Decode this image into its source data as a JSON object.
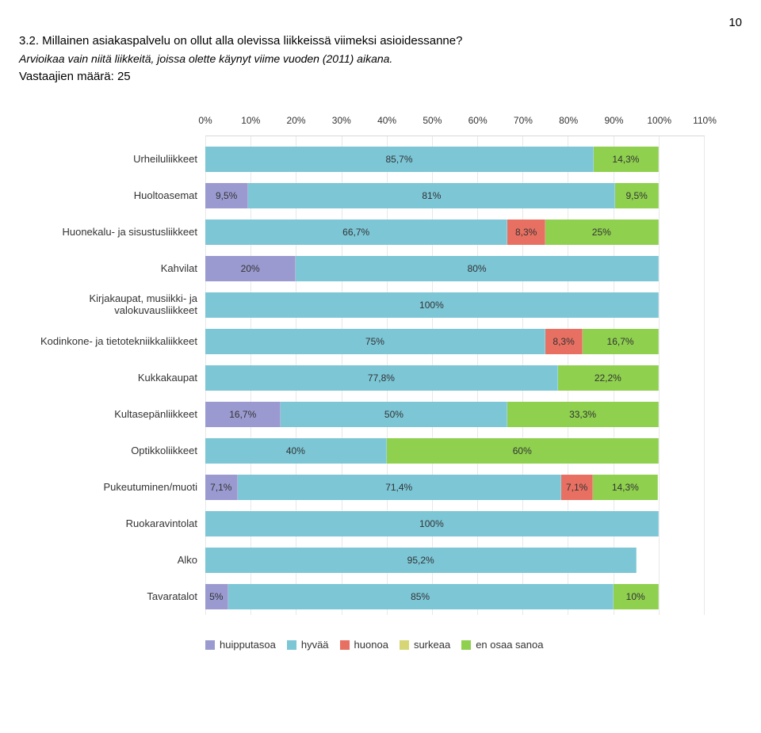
{
  "page_number": "10",
  "title": "3.2. Millainen asiakaspalvelu on ollut alla olevissa liikkeissä viimeksi asioidessanne?",
  "subtitle": "Arvioikaa vain niitä liikkeitä, joissa olette käynyt viime vuoden (2011) aikana.",
  "respondents": "Vastaajien määrä: 25",
  "chart": {
    "type": "stacked-bar-horizontal",
    "xmax": 110,
    "ticks": [
      "0%",
      "10%",
      "20%",
      "30%",
      "40%",
      "50%",
      "60%",
      "70%",
      "80%",
      "90%",
      "100%",
      "110%"
    ],
    "colors": {
      "huipputasoa": "#9a9ad1",
      "hyvaa": "#7cc6d6",
      "huonoa": "#e87062",
      "surkeaa": "#d6d676",
      "en_osaa_sanoa": "#8fd04f"
    },
    "legend": [
      {
        "key": "huipputasoa",
        "label": "huipputasoa"
      },
      {
        "key": "hyvaa",
        "label": "hyvää"
      },
      {
        "key": "huonoa",
        "label": "huonoa"
      },
      {
        "key": "surkeaa",
        "label": "surkeaa"
      },
      {
        "key": "en_osaa_sanoa",
        "label": "en osaa sanoa"
      }
    ],
    "categories": [
      {
        "label": "Urheiluliikkeet",
        "segments": [
          {
            "key": "hyvaa",
            "value": 85.7,
            "text": "85,7%"
          },
          {
            "key": "en_osaa_sanoa",
            "value": 14.3,
            "text": "14,3%"
          }
        ]
      },
      {
        "label": "Huoltoasemat",
        "segments": [
          {
            "key": "huipputasoa",
            "value": 9.5,
            "text": "9,5%"
          },
          {
            "key": "hyvaa",
            "value": 81,
            "text": "81%"
          },
          {
            "key": "en_osaa_sanoa",
            "value": 9.5,
            "text": "9,5%"
          }
        ]
      },
      {
        "label": "Huonekalu- ja sisustusliikkeet",
        "segments": [
          {
            "key": "hyvaa",
            "value": 66.7,
            "text": "66,7%"
          },
          {
            "key": "huonoa",
            "value": 8.3,
            "text": "8,3%"
          },
          {
            "key": "en_osaa_sanoa",
            "value": 25,
            "text": "25%"
          }
        ]
      },
      {
        "label": "Kahvilat",
        "segments": [
          {
            "key": "huipputasoa",
            "value": 20,
            "text": "20%"
          },
          {
            "key": "hyvaa",
            "value": 80,
            "text": "80%"
          }
        ]
      },
      {
        "label": "Kirjakaupat, musiikki- ja valokuvausliikkeet",
        "segments": [
          {
            "key": "hyvaa",
            "value": 100,
            "text": "100%"
          }
        ]
      },
      {
        "label": "Kodinkone- ja tietotekniikkaliikkeet",
        "segments": [
          {
            "key": "hyvaa",
            "value": 75,
            "text": "75%"
          },
          {
            "key": "huonoa",
            "value": 8.3,
            "text": "8,3%"
          },
          {
            "key": "en_osaa_sanoa",
            "value": 16.7,
            "text": "16,7%"
          }
        ]
      },
      {
        "label": "Kukkakaupat",
        "segments": [
          {
            "key": "hyvaa",
            "value": 77.8,
            "text": "77,8%"
          },
          {
            "key": "en_osaa_sanoa",
            "value": 22.2,
            "text": "22,2%"
          }
        ]
      },
      {
        "label": "Kultasepänliikkeet",
        "segments": [
          {
            "key": "huipputasoa",
            "value": 16.7,
            "text": "16,7%"
          },
          {
            "key": "hyvaa",
            "value": 50,
            "text": "50%"
          },
          {
            "key": "en_osaa_sanoa",
            "value": 33.3,
            "text": "33,3%"
          }
        ]
      },
      {
        "label": "Optikkoliikkeet",
        "segments": [
          {
            "key": "hyvaa",
            "value": 40,
            "text": "40%"
          },
          {
            "key": "en_osaa_sanoa",
            "value": 60,
            "text": "60%"
          }
        ]
      },
      {
        "label": "Pukeutuminen/muoti",
        "segments": [
          {
            "key": "huipputasoa",
            "value": 7.1,
            "text": "7,1%"
          },
          {
            "key": "hyvaa",
            "value": 71.4,
            "text": "71,4%"
          },
          {
            "key": "huonoa",
            "value": 7.1,
            "text": "7,1%"
          },
          {
            "key": "en_osaa_sanoa",
            "value": 14.3,
            "text": "14,3%"
          }
        ]
      },
      {
        "label": "Ruokaravintolat",
        "segments": [
          {
            "key": "hyvaa",
            "value": 100,
            "text": "100%"
          }
        ]
      },
      {
        "label": "Alko",
        "segments": [
          {
            "key": "hyvaa",
            "value": 95.2,
            "text": "95,2%"
          }
        ]
      },
      {
        "label": "Tavaratalot",
        "segments": [
          {
            "key": "huipputasoa",
            "value": 5,
            "text": "5%"
          },
          {
            "key": "hyvaa",
            "value": 85,
            "text": "85%"
          },
          {
            "key": "en_osaa_sanoa",
            "value": 10,
            "text": "10%"
          }
        ]
      }
    ]
  }
}
